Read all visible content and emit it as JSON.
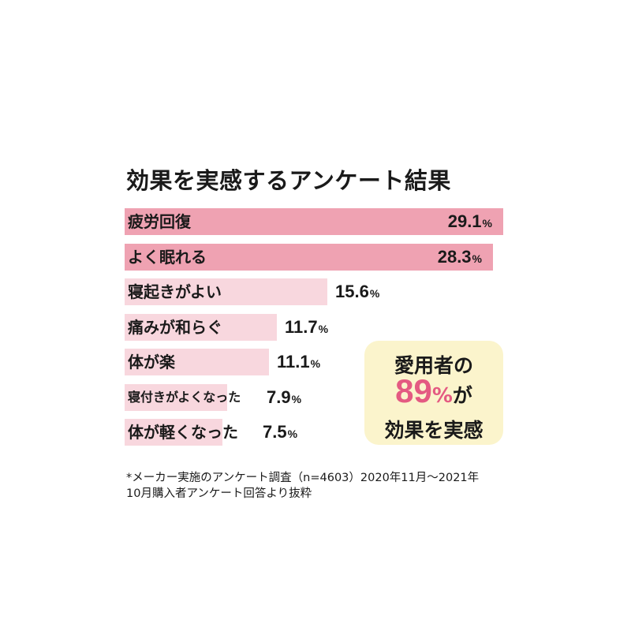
{
  "chart_data": {
    "type": "bar",
    "title": "効果を実感するアンケート結果",
    "categories": [
      "疲労回復",
      "よく眠れる",
      "寝起きがよい",
      "痛みが和らぐ",
      "体が楽",
      "寝付きがよくなった",
      "体が軽くなった"
    ],
    "values": [
      29.1,
      28.3,
      15.6,
      11.7,
      11.1,
      7.9,
      7.5
    ],
    "value_labels": [
      "29.1",
      "28.3",
      "15.6",
      "11.7",
      "11.1",
      "7.9",
      "7.5"
    ],
    "unit": "%",
    "xlim": [
      0,
      29.1
    ],
    "colors": {
      "highlight": "#efa2b2",
      "normal": "#f8d7de"
    },
    "highlight_count": 2
  },
  "callout": {
    "line1": "愛用者の",
    "number": "89",
    "percent": "%",
    "suffix": "が",
    "line3": "効果を実感",
    "accent": "#e45a82",
    "background": "#fbf4cc"
  },
  "footnote": {
    "line1": "*メーカー実施のアンケート調査（n=4603）2020年11月～2021年",
    "line2": "10月購入者アンケート回答より抜粋"
  }
}
